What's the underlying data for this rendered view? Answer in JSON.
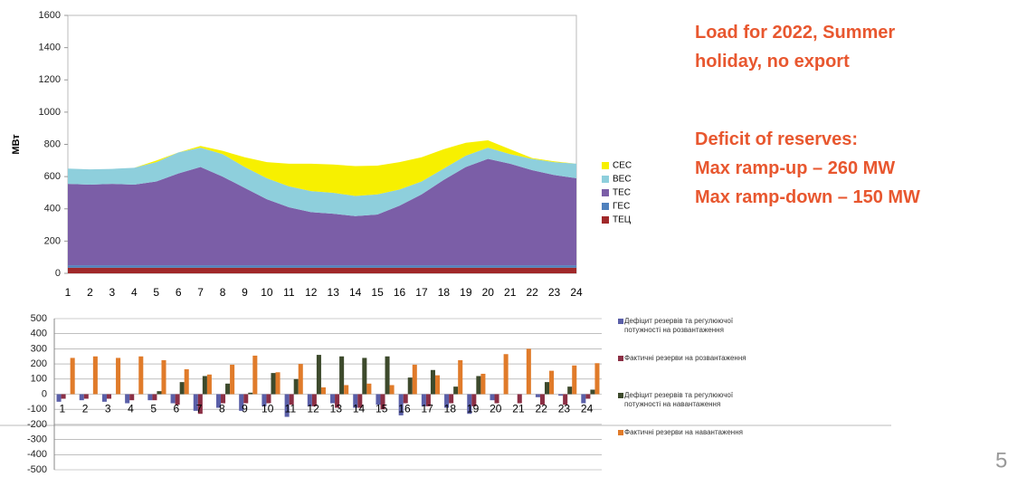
{
  "chart_data": [
    {
      "type": "stacked_area",
      "ylabel": "МВт",
      "categories": [
        "1",
        "2",
        "3",
        "4",
        "5",
        "6",
        "7",
        "8",
        "9",
        "10",
        "11",
        "12",
        "13",
        "14",
        "15",
        "16",
        "17",
        "18",
        "19",
        "20",
        "21",
        "22",
        "23",
        "24"
      ],
      "ylim": [
        0,
        1600
      ],
      "yticks": [
        0,
        200,
        400,
        600,
        800,
        1000,
        1200,
        1400,
        1600
      ],
      "grid": false,
      "legend": "right",
      "series": [
        {
          "name": "СЕС",
          "color": "#f7f000",
          "values": [
            0,
            0,
            0,
            0,
            10,
            0,
            10,
            20,
            60,
            100,
            140,
            170,
            175,
            185,
            178,
            170,
            150,
            120,
            80,
            45,
            30,
            5,
            5,
            0
          ]
        },
        {
          "name": "ВЕС",
          "color": "#8ecfdc",
          "values": [
            95,
            95,
            93,
            105,
            120,
            130,
            120,
            140,
            130,
            130,
            130,
            130,
            130,
            125,
            125,
            100,
            80,
            70,
            70,
            70,
            60,
            70,
            80,
            90
          ]
        },
        {
          "name": "ТЕС",
          "color": "#7b5ea7",
          "values": [
            505,
            500,
            505,
            500,
            520,
            570,
            610,
            550,
            480,
            410,
            360,
            330,
            320,
            305,
            315,
            370,
            440,
            530,
            610,
            660,
            630,
            590,
            560,
            540
          ]
        },
        {
          "name": "ГЕС",
          "color": "#4f81bd",
          "values": [
            15,
            15,
            15,
            15,
            15,
            15,
            15,
            15,
            15,
            15,
            15,
            15,
            15,
            15,
            15,
            15,
            15,
            15,
            15,
            15,
            15,
            15,
            15,
            15
          ]
        },
        {
          "name": "ТЕЦ",
          "color": "#a0282a",
          "values": [
            35,
            35,
            35,
            35,
            35,
            35,
            35,
            35,
            35,
            35,
            35,
            35,
            35,
            35,
            35,
            35,
            35,
            35,
            35,
            35,
            35,
            35,
            35,
            35
          ]
        }
      ]
    },
    {
      "type": "bar",
      "categories": [
        "1",
        "2",
        "3",
        "4",
        "5",
        "6",
        "7",
        "8",
        "9",
        "10",
        "11",
        "12",
        "13",
        "14",
        "15",
        "16",
        "17",
        "18",
        "19",
        "20",
        "21",
        "22",
        "23",
        "24"
      ],
      "ylim": [
        -500,
        500
      ],
      "yticks": [
        -500,
        -400,
        -300,
        -200,
        -100,
        0,
        100,
        200,
        300,
        400,
        500
      ],
      "grid": true,
      "legend": "right",
      "series": [
        {
          "name": "Дефіцит резервів та регулюючої потужності на розвантаження",
          "color": "#5a5fa8",
          "values": [
            -50,
            -40,
            -50,
            -60,
            -40,
            -60,
            -110,
            -90,
            -110,
            -80,
            -150,
            -80,
            -60,
            -90,
            -70,
            -140,
            -80,
            -90,
            -130,
            -40,
            0,
            -20,
            -10,
            -60
          ]
        },
        {
          "name": "Фактичні резерви на розвантаження",
          "color": "#8b2f45",
          "values": [
            -30,
            -30,
            -30,
            -40,
            -40,
            -70,
            -130,
            -60,
            -60,
            -60,
            -70,
            -80,
            -90,
            -90,
            -100,
            -60,
            -80,
            -60,
            -80,
            -60,
            -60,
            -70,
            -70,
            -30
          ]
        },
        {
          "name": "Дефіцит резервів та регулюючої потужності на навантаження",
          "color": "#3d4a2c",
          "values": [
            0,
            0,
            0,
            0,
            20,
            80,
            120,
            70,
            10,
            140,
            100,
            260,
            250,
            240,
            250,
            110,
            160,
            50,
            120,
            0,
            0,
            80,
            50,
            30
          ]
        },
        {
          "name": "Фактичні резерви на навантаження",
          "color": "#e07b2a",
          "values": [
            240,
            250,
            240,
            250,
            225,
            165,
            130,
            195,
            255,
            145,
            200,
            45,
            60,
            70,
            60,
            195,
            125,
            225,
            135,
            265,
            300,
            155,
            190,
            205
          ]
        }
      ]
    }
  ],
  "notes": {
    "title": [
      "Load for 2022, Summer",
      "holiday, no export"
    ],
    "deficit": [
      "Deficit of reserves:",
      "Max ramp-up – 260 MW",
      "Max ramp-down – 150 MW"
    ]
  },
  "page_number": "5"
}
